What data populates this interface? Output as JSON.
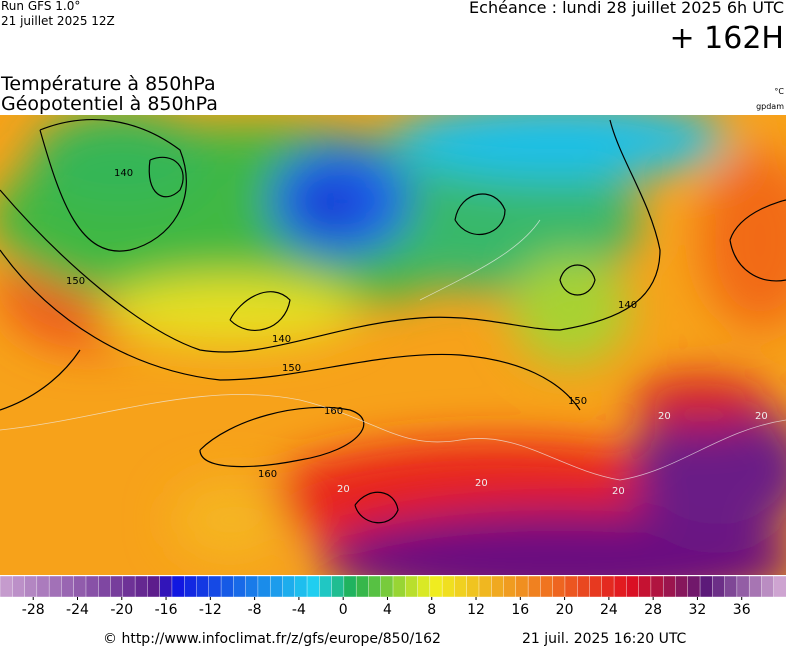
{
  "header": {
    "run": "Run GFS 1.0°",
    "run_date": "21 juillet 2025 12Z",
    "valid": "Echéance : lundi 28 juillet 2025 6h UTC",
    "lead": "+ 162H",
    "title1": "Température à 850hPa",
    "title2": "Géopotentiel à 850hPa",
    "unit1": "°C",
    "unit2": "gpdam"
  },
  "map": {
    "contour_labels": [
      "140",
      "150",
      "140",
      "150",
      "160",
      "160",
      "140",
      "150",
      "20",
      "20",
      "20",
      "20",
      "20"
    ]
  },
  "colorbar": {
    "xlim": [
      -31,
      40
    ],
    "xticks": [
      -28,
      -24,
      -20,
      -16,
      -12,
      -8,
      -4,
      0,
      4,
      8,
      12,
      16,
      20,
      24,
      28,
      32,
      36
    ]
  },
  "footer": {
    "source": "© http://www.infoclimat.fr/z/gfs/europe/850/162",
    "generated": "21 juil. 2025 16:20 UTC"
  }
}
